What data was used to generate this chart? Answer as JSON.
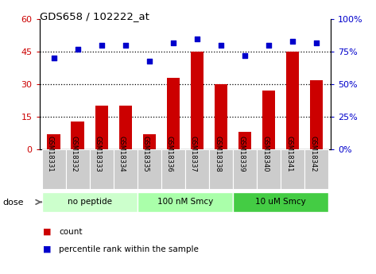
{
  "title": "GDS658 / 102222_at",
  "categories": [
    "GSM18331",
    "GSM18332",
    "GSM18333",
    "GSM18334",
    "GSM18335",
    "GSM18336",
    "GSM18337",
    "GSM18338",
    "GSM18339",
    "GSM18340",
    "GSM18341",
    "GSM18342"
  ],
  "bar_values": [
    7,
    13,
    20,
    20,
    7,
    33,
    45,
    30,
    8,
    27,
    45,
    32
  ],
  "percentile_values": [
    70,
    77,
    80,
    80,
    68,
    82,
    85,
    80,
    72,
    80,
    83,
    82
  ],
  "bar_color": "#cc0000",
  "dot_color": "#0000cc",
  "left_ylim": [
    0,
    60
  ],
  "left_yticks": [
    0,
    15,
    30,
    45,
    60
  ],
  "right_ylim": [
    0,
    100
  ],
  "right_yticks": [
    0,
    25,
    50,
    75,
    100
  ],
  "grid_values": [
    15,
    30,
    45
  ],
  "dose_groups": [
    {
      "label": "no peptide",
      "start": 0,
      "end": 4,
      "color": "#ccffcc"
    },
    {
      "label": "100 nM Smcy",
      "start": 4,
      "end": 8,
      "color": "#aaffaa"
    },
    {
      "label": "10 uM Smcy",
      "start": 8,
      "end": 12,
      "color": "#44cc44"
    }
  ],
  "dose_label": "dose",
  "legend_count_label": "count",
  "legend_percentile_label": "percentile rank within the sample",
  "bar_color_tick": "#cc0000",
  "right_tick_color": "#0000cc",
  "background_color": "#ffffff",
  "xtick_bg_color": "#cccccc",
  "xlabel_rotation": 270,
  "fig_width": 4.73,
  "fig_height": 3.45,
  "dpi": 100
}
